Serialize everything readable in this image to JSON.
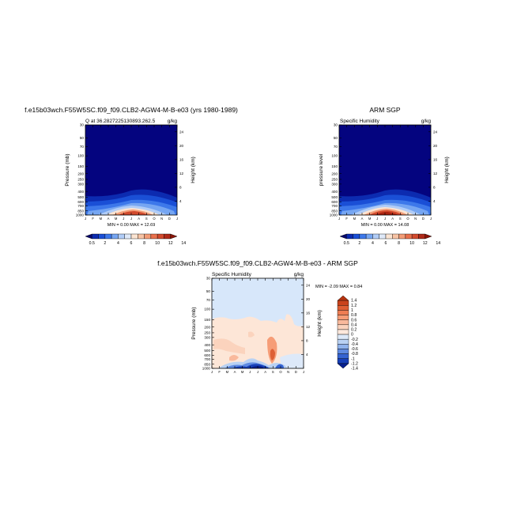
{
  "panels": {
    "model": {
      "title": "f.e15b03wch.F55W5SC.f09_f09.CLB2-AGW4-M-B-e03 (yrs 1980-1989)",
      "subtitle_left": "Q at 36.2827225130893.262.5",
      "subtitle_right": "g/kg",
      "ylabel_left": "Pressure (mb)",
      "ylabel_right": "Height (km)",
      "minmax": "MIN =    0.00 MAX =   12.69"
    },
    "obs": {
      "title": "ARM SGP",
      "subtitle_left": "Specific Humidity",
      "subtitle_right": "g/kg",
      "ylabel_left": "pressure level",
      "ylabel_right": "Height (km)",
      "minmax": "MIN =    0.00 MAX =   14.08"
    },
    "diff": {
      "title": "f.e15b03wch.F55W5SC.f09_f09.CLB2-AGW4-M-B-e03 - ARM SGP",
      "subtitle_left": "Specific Humidity",
      "subtitle_right": "g/kg",
      "ylabel_left": "Pressure (mb)",
      "ylabel_right": "Height (km)",
      "minmax": "MIN =   -2.09 MAX =    0.84"
    }
  },
  "chart_data": [
    {
      "type": "heatmap",
      "title": "f.e15b03wch.F55W5SC.f09_f09.CLB2-AGW4-M-B-e03 (yrs 1980-1989)",
      "xlabel": "",
      "ylabel": "Pressure (mb)",
      "x_tick_labels": [
        "J",
        "F",
        "M",
        "A",
        "M",
        "J",
        "J",
        "A",
        "S",
        "O",
        "N",
        "D",
        "J"
      ],
      "y_pressure_ticks": [
        "30",
        "50",
        "70",
        "100",
        "150",
        "200",
        "250",
        "300",
        "400",
        "500",
        "600",
        "700",
        "850",
        "1000"
      ],
      "y_height_ticks": [
        "24",
        "20",
        "16",
        "12",
        "8",
        "4"
      ],
      "min": 0.0,
      "max": 12.69,
      "units": "g/kg",
      "colorbar_labels": [
        "0.5",
        "2",
        "4",
        "6",
        "8",
        "10",
        "12",
        "14"
      ]
    },
    {
      "type": "heatmap",
      "title": "ARM SGP",
      "xlabel": "",
      "ylabel": "pressure level",
      "x_tick_labels": [
        "J",
        "F",
        "M",
        "A",
        "M",
        "J",
        "J",
        "A",
        "S",
        "O",
        "N",
        "D",
        "J"
      ],
      "y_pressure_ticks": [
        "30",
        "50",
        "70",
        "100",
        "150",
        "200",
        "250",
        "300",
        "400",
        "500",
        "600",
        "700",
        "850",
        "1000"
      ],
      "y_height_ticks": [
        "24",
        "20",
        "16",
        "12",
        "8",
        "4"
      ],
      "min": 0.0,
      "max": 14.08,
      "units": "g/kg",
      "colorbar_labels": [
        "0.5",
        "2",
        "4",
        "6",
        "8",
        "10",
        "12",
        "14"
      ]
    },
    {
      "type": "heatmap",
      "title": "f.e15b03wch.F55W5SC.f09_f09.CLB2-AGW4-M-B-e03 - ARM SGP",
      "xlabel": "",
      "ylabel": "Pressure (mb)",
      "x_tick_labels": [
        "J",
        "F",
        "M",
        "A",
        "M",
        "J",
        "J",
        "A",
        "S",
        "O",
        "N",
        "D",
        "J"
      ],
      "y_pressure_ticks": [
        "30",
        "50",
        "70",
        "100",
        "150",
        "200",
        "250",
        "300",
        "400",
        "500",
        "600",
        "700",
        "850",
        "1000"
      ],
      "y_height_ticks": [
        "24",
        "20",
        "16",
        "12",
        "8",
        "4"
      ],
      "min": -2.09,
      "max": 0.84,
      "units": "g/kg",
      "colorbar_labels": [
        "1.4",
        "1.2",
        "1",
        "0.8",
        "0.6",
        "0.4",
        "0.2",
        "0",
        "-0.2",
        "-0.4",
        "-0.6",
        "-0.8",
        "-1",
        "-1.2",
        "-1.4"
      ]
    }
  ],
  "palettes": {
    "moisture": [
      "#08086b",
      "#0c2bb0",
      "#1a4fd6",
      "#3d78ea",
      "#76a6f2",
      "#b1cdf7",
      "#dfe9f8",
      "#fbe4d2",
      "#f7c3a4",
      "#f39c76",
      "#e8704c",
      "#d24a2d",
      "#b02a19",
      "#8a1408"
    ],
    "diff": [
      "#b5330f",
      "#c9431c",
      "#de5f34",
      "#ee7d53",
      "#f69d77",
      "#f9b99c",
      "#fbd3bd",
      "#fde8dc",
      "#dde9f9",
      "#b9d1f3",
      "#8fb2ec",
      "#5f8ae1",
      "#3563d2",
      "#173fb8",
      "#071f8e"
    ],
    "model_bg": "#04047f",
    "diff_bg": "#fde6d7",
    "diff_upper": "#d7e7fa"
  }
}
